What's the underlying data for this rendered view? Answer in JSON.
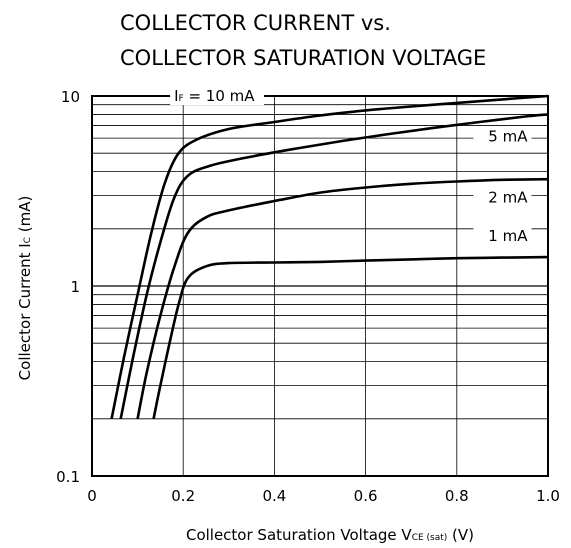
{
  "chart_data": {
    "type": "line",
    "title_lines": [
      "COLLECTOR CURRENT vs.",
      "COLLECTOR SATURATION VOLTAGE"
    ],
    "xlabel": {
      "text": "Collector Saturation Voltage  V",
      "sub": "CE (sat)",
      "unit": " (V)"
    },
    "ylabel": {
      "text": "Collector Current  I",
      "sub": "C",
      "unit": " (mA)"
    },
    "xlim": [
      0,
      1.0
    ],
    "ylim": [
      0.1,
      10
    ],
    "yscale": "log",
    "grid": true,
    "x_ticks": [
      "0",
      "0.2",
      "0.4",
      "0.6",
      "0.8",
      "1.0"
    ],
    "y_ticks": [
      "0.1",
      "1",
      "10"
    ],
    "series": [
      {
        "label": {
          "prefix": "I",
          "sub": "F",
          "text": " = 10 mA"
        },
        "points": [
          [
            0.043,
            0.2
          ],
          [
            0.07,
            0.42
          ],
          [
            0.1,
            0.9
          ],
          [
            0.13,
            1.9
          ],
          [
            0.16,
            3.5
          ],
          [
            0.19,
            5.0
          ],
          [
            0.23,
            5.9
          ],
          [
            0.3,
            6.7
          ],
          [
            0.4,
            7.3
          ],
          [
            0.5,
            7.9
          ],
          [
            0.6,
            8.4
          ],
          [
            0.7,
            8.8
          ],
          [
            0.8,
            9.2
          ],
          [
            0.9,
            9.6
          ],
          [
            1.0,
            10.0
          ]
        ]
      },
      {
        "label": {
          "prefix": "",
          "sub": "",
          "text": "5 mA"
        },
        "points": [
          [
            0.063,
            0.2
          ],
          [
            0.09,
            0.42
          ],
          [
            0.12,
            0.9
          ],
          [
            0.15,
            1.7
          ],
          [
            0.18,
            2.9
          ],
          [
            0.21,
            3.8
          ],
          [
            0.26,
            4.3
          ],
          [
            0.35,
            4.8
          ],
          [
            0.45,
            5.3
          ],
          [
            0.55,
            5.8
          ],
          [
            0.65,
            6.3
          ],
          [
            0.75,
            6.8
          ],
          [
            0.85,
            7.3
          ],
          [
            0.95,
            7.8
          ],
          [
            1.0,
            8.0
          ]
        ]
      },
      {
        "label": {
          "prefix": "",
          "sub": "",
          "text": "2 mA"
        },
        "points": [
          [
            0.1,
            0.2
          ],
          [
            0.12,
            0.35
          ],
          [
            0.15,
            0.7
          ],
          [
            0.18,
            1.25
          ],
          [
            0.21,
            1.9
          ],
          [
            0.25,
            2.3
          ],
          [
            0.3,
            2.5
          ],
          [
            0.4,
            2.8
          ],
          [
            0.5,
            3.1
          ],
          [
            0.6,
            3.3
          ],
          [
            0.7,
            3.45
          ],
          [
            0.8,
            3.55
          ],
          [
            0.9,
            3.62
          ],
          [
            1.0,
            3.65
          ]
        ]
      },
      {
        "label": {
          "prefix": "",
          "sub": "",
          "text": "1 mA"
        },
        "points": [
          [
            0.135,
            0.2
          ],
          [
            0.15,
            0.3
          ],
          [
            0.17,
            0.5
          ],
          [
            0.19,
            0.8
          ],
          [
            0.21,
            1.1
          ],
          [
            0.25,
            1.27
          ],
          [
            0.3,
            1.32
          ],
          [
            0.4,
            1.33
          ],
          [
            0.5,
            1.34
          ],
          [
            0.6,
            1.36
          ],
          [
            0.7,
            1.38
          ],
          [
            0.8,
            1.4
          ],
          [
            0.9,
            1.41
          ],
          [
            1.0,
            1.42
          ]
        ]
      }
    ]
  }
}
